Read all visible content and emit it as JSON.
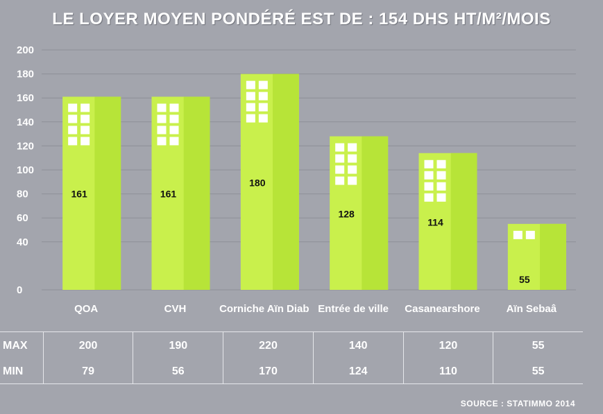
{
  "chart_data": {
    "type": "bar",
    "title": "LE LOYER MOYEN PONDÉRÉ EST DE : 154 DHS HT/M²/MOIS",
    "categories": [
      "QOA",
      "CVH",
      "Corniche Aïn Diab",
      "Entrée de ville",
      "Casanearshore",
      "Aïn Sebaâ"
    ],
    "values": [
      161,
      161,
      180,
      128,
      114,
      55
    ],
    "data_labels": [
      "161",
      "161",
      "180",
      "128",
      "114",
      "55"
    ],
    "ylim": [
      0,
      200
    ],
    "yticks": [
      "0",
      "40",
      "60",
      "80",
      "100",
      "120",
      "140",
      "160",
      "180",
      "200"
    ],
    "ytick_values": [
      0,
      40,
      60,
      80,
      100,
      120,
      140,
      160,
      180,
      200
    ],
    "grid": true,
    "bar_color": "#c9f04c",
    "table": {
      "rows": [
        {
          "label": "MAX",
          "values": [
            "200",
            "190",
            "220",
            "140",
            "120",
            "55"
          ]
        },
        {
          "label": "MIN",
          "values": [
            "79",
            "56",
            "170",
            "124",
            "110",
            "55"
          ]
        }
      ]
    },
    "source": "SOURCE : STATIMMO 2014"
  }
}
